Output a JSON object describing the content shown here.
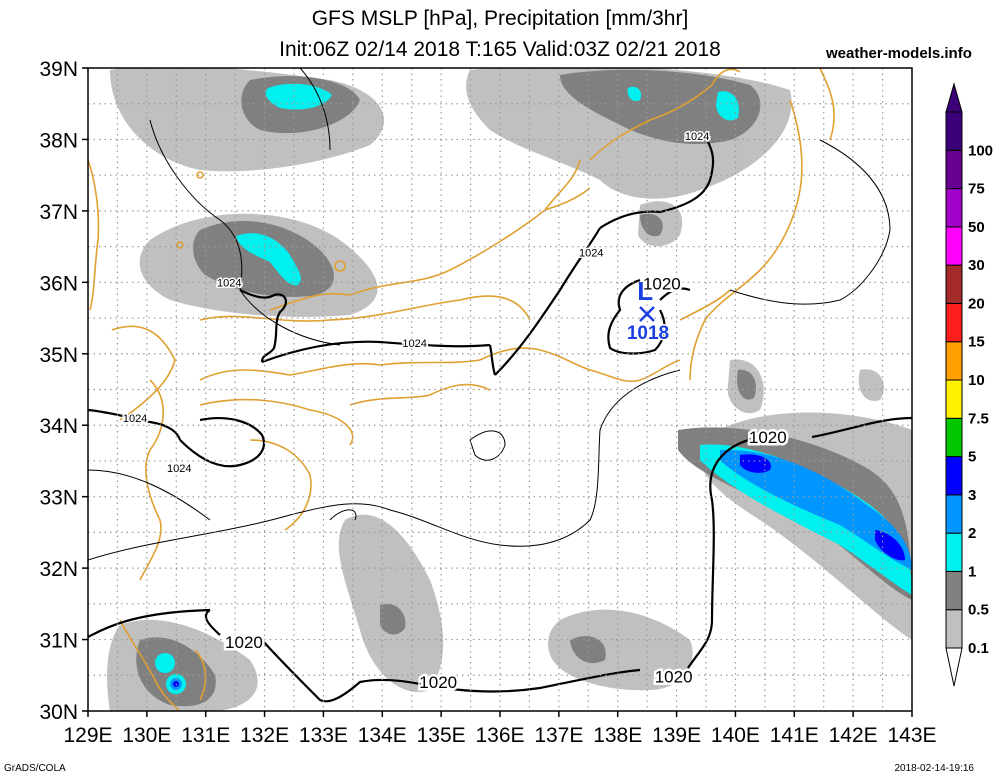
{
  "header": {
    "title_line1": "GFS MSLP [hPa], Precipitation [mm/3hr]",
    "title_line2": "Init:06Z 02/14 2018 T:165 Valid:03Z 02/21 2018",
    "site": "weather-models.info"
  },
  "footer": {
    "left": "GrADS/COLA",
    "right": "2018-02-14-19:16"
  },
  "map": {
    "lon_range": [
      129,
      143
    ],
    "lat_range": [
      30,
      39
    ],
    "lon_ticks": [
      "129E",
      "130E",
      "131E",
      "132E",
      "133E",
      "134E",
      "135E",
      "136E",
      "137E",
      "138E",
      "139E",
      "140E",
      "141E",
      "142E",
      "143E"
    ],
    "lat_ticks": [
      "30N",
      "31N",
      "32N",
      "33N",
      "34N",
      "35N",
      "36N",
      "37N",
      "38N",
      "39N"
    ],
    "grid": "dotted",
    "coast_color": "#e0a030"
  },
  "isobars": {
    "labels": [
      {
        "text": "1024",
        "lon": 131.4,
        "lat": 36.0,
        "size": "small"
      },
      {
        "text": "1024",
        "lon": 134.55,
        "lat": 35.15,
        "size": "small"
      },
      {
        "text": "1024",
        "lon": 129.8,
        "lat": 34.1,
        "size": "small"
      },
      {
        "text": "1024",
        "lon": 130.55,
        "lat": 33.4,
        "size": "small"
      },
      {
        "text": "1024",
        "lon": 137.55,
        "lat": 36.42,
        "size": "small"
      },
      {
        "text": "1024",
        "lon": 139.35,
        "lat": 38.05,
        "size": "small"
      },
      {
        "text": "1020",
        "lon": 138.75,
        "lat": 36.0,
        "size": "large"
      },
      {
        "text": "1020",
        "lon": 140.55,
        "lat": 33.85,
        "size": "large"
      },
      {
        "text": "1020",
        "lon": 131.65,
        "lat": 30.98,
        "size": "large"
      },
      {
        "text": "1020",
        "lon": 134.95,
        "lat": 30.42,
        "size": "large"
      },
      {
        "text": "1020",
        "lon": 138.95,
        "lat": 30.5,
        "size": "large"
      }
    ],
    "low_center": {
      "symbol": "L",
      "value": "1018",
      "lon": 138.4,
      "lat": 35.6,
      "color": "#1a3fe0"
    }
  },
  "colorbar": {
    "title": "Precipitation [mm/3hr]",
    "levels": [
      "0.1",
      "0.5",
      "1",
      "2",
      "3",
      "5",
      "7.5",
      "10",
      "15",
      "20",
      "30",
      "50",
      "75",
      "100"
    ],
    "colors": [
      "#ffffff",
      "#c0c0c0",
      "#808080",
      "#00f0f0",
      "#0096ff",
      "#0000ff",
      "#00c800",
      "#fff200",
      "#ffa000",
      "#ff1e1e",
      "#a52a2a",
      "#ff00ff",
      "#a000c8",
      "#6a0090",
      "#3c0078"
    ]
  }
}
